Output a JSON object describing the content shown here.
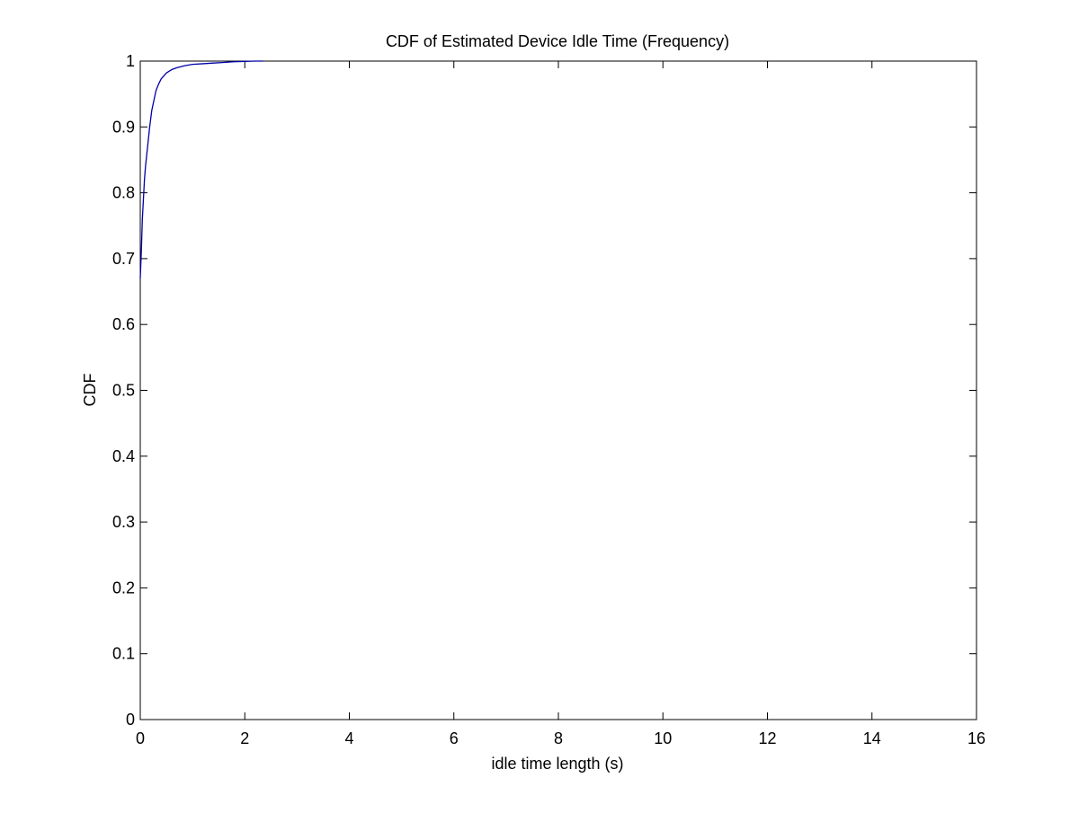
{
  "chart_data": {
    "type": "line",
    "title": "CDF of Estimated Device Idle Time (Frequency)",
    "xlabel": "idle time length (s)",
    "ylabel": "CDF",
    "xlim": [
      0,
      16
    ],
    "ylim": [
      0,
      1
    ],
    "xticks": [
      "0",
      "2",
      "4",
      "6",
      "8",
      "10",
      "12",
      "14",
      "16"
    ],
    "yticks": [
      "0",
      "0.1",
      "0.2",
      "0.3",
      "0.4",
      "0.5",
      "0.6",
      "0.7",
      "0.8",
      "0.9",
      "1"
    ],
    "grid": false,
    "legend": "none",
    "line_color": "#0000aa",
    "series": [
      {
        "x": [
          0.0,
          0.02,
          0.04,
          0.06,
          0.08,
          0.1,
          0.14,
          0.18,
          0.22,
          0.26,
          0.3,
          0.35,
          0.4,
          0.5,
          0.6,
          0.7,
          0.85,
          1.0,
          1.2,
          1.4,
          1.6,
          1.8,
          2.0,
          2.2,
          2.35
        ],
        "y": [
          0.67,
          0.71,
          0.76,
          0.79,
          0.82,
          0.84,
          0.87,
          0.9,
          0.925,
          0.94,
          0.955,
          0.965,
          0.973,
          0.982,
          0.987,
          0.99,
          0.993,
          0.995,
          0.996,
          0.997,
          0.998,
          0.999,
          0.9995,
          1.0,
          1.0
        ]
      }
    ]
  }
}
